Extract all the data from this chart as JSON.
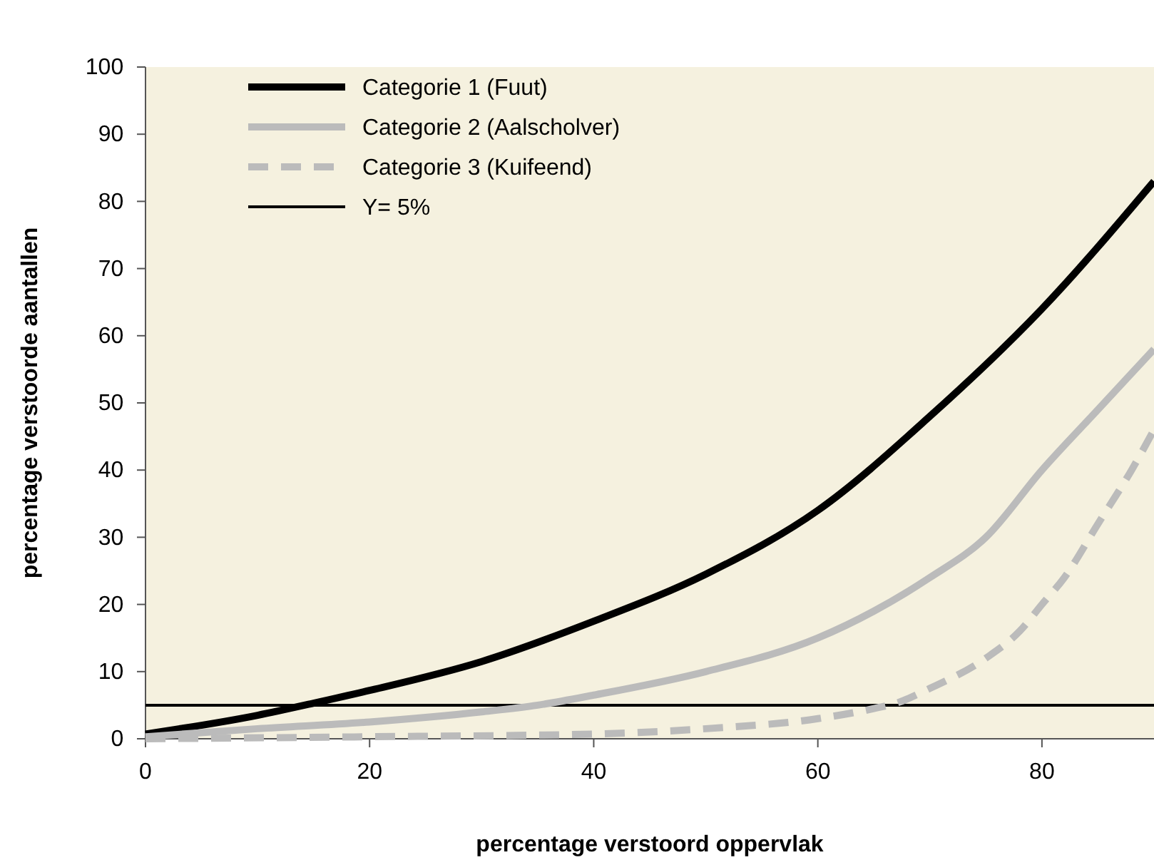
{
  "chart_data": {
    "type": "line",
    "xlabel": "percentage verstoord oppervlak",
    "ylabel": "percentage verstoorde aantallen",
    "xlim": [
      0,
      90
    ],
    "xticks": [
      0,
      20,
      40,
      60,
      80
    ],
    "ylim": [
      0,
      100
    ],
    "yticks": [
      0,
      10,
      20,
      30,
      40,
      50,
      60,
      70,
      80,
      90,
      100
    ],
    "legend": "top left",
    "grid": false,
    "series": [
      {
        "name": "Categorie 1 (Fuut)",
        "color": "#000000",
        "line_style": "solid",
        "x": [
          0,
          10,
          15,
          20,
          30,
          40,
          50,
          60,
          70,
          80,
          90
        ],
        "values": [
          0.7,
          3.5,
          5.3,
          7.2,
          11.5,
          17.5,
          24.5,
          34,
          48,
          64,
          83
        ]
      },
      {
        "name": "Categorie 2 (Aalscholver)",
        "color": "#bbbbbb",
        "line_style": "solid",
        "x": [
          0,
          10,
          20,
          30,
          35,
          40,
          50,
          60,
          65,
          70,
          75,
          80,
          85,
          90
        ],
        "values": [
          0.3,
          1.5,
          2.5,
          4,
          5,
          6.5,
          10,
          15,
          19,
          24,
          30,
          40,
          49,
          58
        ]
      },
      {
        "name": "Categorie 3 (Kuifeend)",
        "color": "#bbbbbb",
        "line_style": "dashed",
        "x": [
          0,
          20,
          40,
          50,
          60,
          65,
          67,
          70,
          75,
          78,
          80,
          82,
          85,
          88,
          90
        ],
        "values": [
          0,
          0.3,
          0.7,
          1.5,
          3,
          4.5,
          5.3,
          7.5,
          12,
          16,
          20,
          24,
          32,
          40,
          46
        ]
      }
    ],
    "ref_lines": [
      {
        "axis": "y",
        "value": 5,
        "label": "Y= 5%",
        "color": "#000000"
      }
    ]
  }
}
